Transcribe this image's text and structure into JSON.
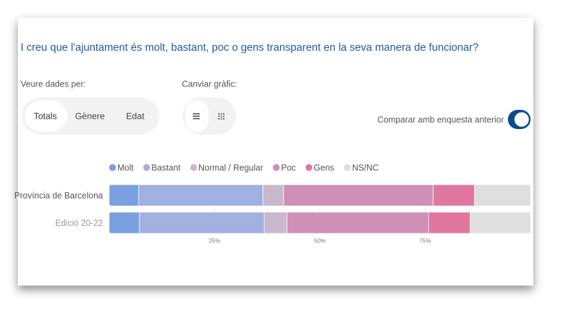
{
  "filters": {
    "label": "Veure dades per:",
    "options": [
      "Totals",
      "Gènere",
      "Edat"
    ]
  },
  "chart_switch": {
    "label": "Canviar gràfic:"
  },
  "compare_toggle": {
    "label": "Comparar amb enquesta anterior"
  },
  "chart_data": {
    "type": "bar",
    "orientation": "horizontal",
    "stacked": true,
    "title": "I creu que l'ajuntament és molt, bastant, poc o gens transparent en la seva manera de funcionar?",
    "categories": [
      "Província de Barcelona",
      "Edició 20-22"
    ],
    "series": [
      {
        "name": "Molt",
        "color": "#7aa0e2",
        "values": [
          7.0,
          7.2
        ]
      },
      {
        "name": "Bastant",
        "color": "#a0b0e0",
        "values": [
          29.5,
          29.6
        ]
      },
      {
        "name": "Normal / Regular",
        "color": "#c9b7cd",
        "values": [
          4.9,
          5.4
        ]
      },
      {
        "name": "Poc",
        "color": "#cf90b8",
        "values": [
          35.5,
          33.6
        ]
      },
      {
        "name": "Gens",
        "color": "#e0779f",
        "values": [
          9.8,
          9.9
        ]
      },
      {
        "name": "NS/NC",
        "color": "#dedede",
        "values": [
          13.3,
          14.3
        ]
      }
    ],
    "xlim": [
      0,
      100
    ],
    "xticks": [
      {
        "value": 25,
        "label": "25%"
      },
      {
        "value": 50,
        "label": "50%"
      },
      {
        "value": 75,
        "label": "75%"
      }
    ]
  }
}
